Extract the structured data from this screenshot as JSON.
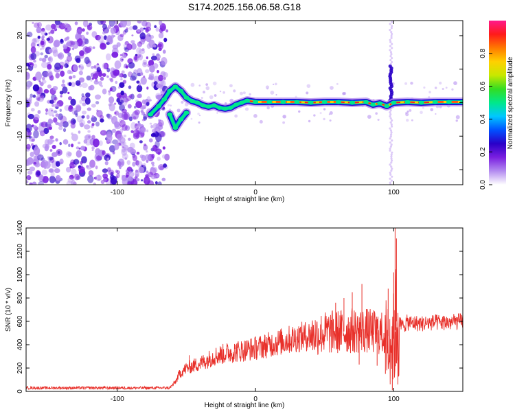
{
  "figure": {
    "title": "S174.2025.156.06.58.G18"
  },
  "colors": {
    "snr_line": "#e8302a",
    "frame": "#000000",
    "background": "#ffffff",
    "colormap": [
      "#ffffff",
      "#b48cf0",
      "#7a1fe0",
      "#2a00c8",
      "#0050ff",
      "#00c8ff",
      "#00e88a",
      "#33dd22",
      "#c8e800",
      "#ffd000",
      "#ff7a00",
      "#ff1a1a",
      "#ff1a8c"
    ]
  },
  "chart_data": [
    {
      "type": "heatmap",
      "xlabel": "Height of straight line (km)",
      "ylabel": "Frequency (Hz)",
      "xlim": [
        -166,
        150
      ],
      "ylim": [
        -24.5,
        24.5
      ],
      "xticks": [
        -100,
        0,
        100
      ],
      "xtick_labels": [
        "-100",
        "0",
        "100"
      ],
      "yticks": [
        -20,
        -10,
        0,
        10,
        20
      ],
      "ytick_labels": [
        "-20",
        "-10",
        "0",
        "10",
        "20"
      ],
      "colorbar": {
        "label": "Normalized spectral amplitude",
        "range": [
          0,
          1
        ],
        "ticks": [
          0.0,
          0.2,
          0.4,
          0.6,
          0.8
        ],
        "tick_labels": [
          "0.0",
          "0.2",
          "0.4",
          "0.6",
          "0.8"
        ]
      },
      "noise_region_x": [
        -166,
        -64
      ],
      "ridge": [
        [
          -76,
          -3.5
        ],
        [
          -70,
          -1.0
        ],
        [
          -66,
          1.0
        ],
        [
          -62,
          3.5
        ],
        [
          -58,
          4.8
        ],
        [
          -54,
          3.5
        ],
        [
          -50,
          1.5
        ],
        [
          -46,
          0.5
        ],
        [
          -42,
          0.0
        ],
        [
          -38,
          -0.8
        ],
        [
          -34,
          -1.2
        ],
        [
          -30,
          -0.8
        ],
        [
          -26,
          -1.5
        ],
        [
          -22,
          -1.8
        ],
        [
          -18,
          -1.5
        ],
        [
          -14,
          -0.6
        ],
        [
          -10,
          0.0
        ],
        [
          -6,
          0.6
        ],
        [
          0,
          0.2
        ],
        [
          10,
          0.2
        ],
        [
          20,
          0.2
        ],
        [
          30,
          0.2
        ],
        [
          40,
          0.0
        ],
        [
          50,
          0.2
        ],
        [
          60,
          0.2
        ],
        [
          70,
          0.0
        ],
        [
          80,
          0.2
        ],
        [
          85,
          -0.6
        ],
        [
          90,
          -0.2
        ],
        [
          95,
          -1.0
        ],
        [
          100,
          0.0
        ],
        [
          110,
          0.2
        ],
        [
          120,
          0.0
        ],
        [
          130,
          0.2
        ],
        [
          140,
          0.2
        ],
        [
          150,
          0.2
        ]
      ],
      "secondary_branch": [
        [
          -62,
          -3.5
        ],
        [
          -58,
          -7.5
        ],
        [
          -54,
          -5.0
        ],
        [
          -50,
          -3.0
        ]
      ],
      "vertical_feature": {
        "x": 98,
        "y_range": [
          -24.5,
          24.5
        ],
        "strong_range": [
          0,
          11
        ]
      }
    },
    {
      "type": "line",
      "xlabel": "Height of straight line (km)",
      "ylabel": "SNR (10 * v/v)",
      "xlim": [
        -166,
        150
      ],
      "ylim": [
        0,
        1400
      ],
      "xticks": [
        -100,
        0,
        100
      ],
      "xtick_labels": [
        "-100",
        "0",
        "100"
      ],
      "yticks": [
        0,
        200,
        400,
        600,
        800,
        1000,
        1200,
        1400
      ],
      "ytick_labels": [
        "0",
        "200",
        "400",
        "600",
        "800",
        "1000",
        "1200",
        "1400"
      ],
      "grid": false,
      "series": [
        {
          "trend": [
            [
              -166,
              30
            ],
            [
              -62,
              30
            ],
            [
              -58,
              80
            ],
            [
              -55,
              150
            ],
            [
              -50,
              200
            ],
            [
              -45,
              220
            ],
            [
              -40,
              240
            ],
            [
              -30,
              300
            ],
            [
              -20,
              330
            ],
            [
              -10,
              350
            ],
            [
              0,
              370
            ],
            [
              10,
              400
            ],
            [
              20,
              430
            ],
            [
              30,
              460
            ],
            [
              40,
              480
            ],
            [
              50,
              500
            ],
            [
              60,
              510
            ],
            [
              70,
              520
            ],
            [
              80,
              520
            ],
            [
              90,
              500
            ],
            [
              95,
              480
            ],
            [
              100,
              450
            ],
            [
              102,
              600
            ],
            [
              106,
              560
            ],
            [
              110,
              590
            ],
            [
              120,
              580
            ],
            [
              130,
              590
            ],
            [
              140,
              590
            ],
            [
              150,
              600
            ]
          ],
          "peaks": [
            [
              101,
              1400
            ],
            [
              102,
              1310
            ],
            [
              100,
              1020
            ],
            [
              77,
              920
            ],
            [
              70,
              850
            ],
            [
              96,
              880
            ],
            [
              64,
              800
            ],
            [
              58,
              760
            ],
            [
              -48,
              310
            ]
          ],
          "troughs": [
            [
              99,
              10
            ],
            [
              103,
              60
            ],
            [
              94,
              150
            ],
            [
              88,
              220
            ],
            [
              75,
              230
            ]
          ]
        }
      ]
    }
  ]
}
